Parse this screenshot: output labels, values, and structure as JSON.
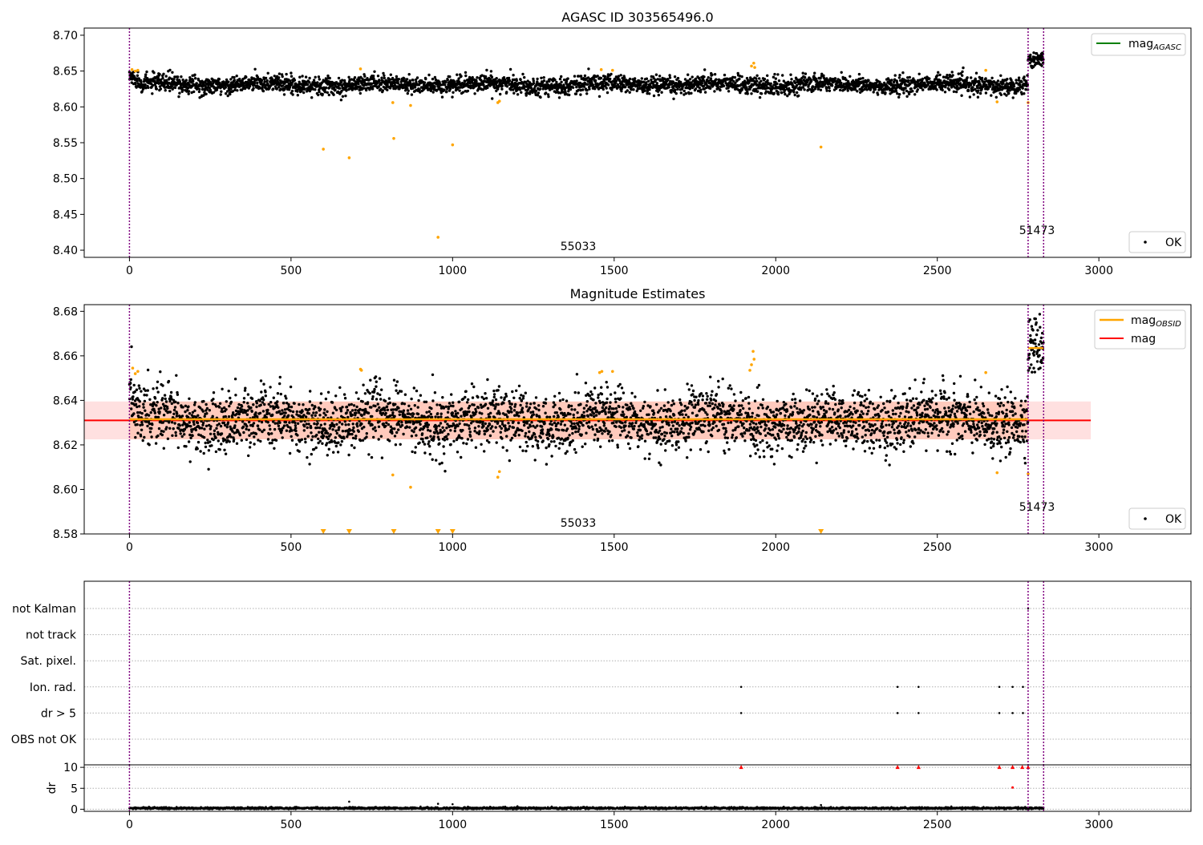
{
  "figure": {
    "xticks": [
      0,
      500,
      1000,
      1500,
      2000,
      2500,
      3000
    ],
    "vlines_x": [
      0,
      2781,
      2829
    ],
    "colors": {
      "ok": "#000000",
      "flagged": "#ffa500",
      "mean_line": "#ff0000",
      "obsid_line": "#ffa500",
      "agasc_line": "#008000",
      "vline": "#800080",
      "band_red": "#ffcccc",
      "band_orange": "#ffa07a",
      "warn_marker": "#ff0000"
    }
  },
  "chart_data": [
    {
      "type": "scatter",
      "id": "agasc",
      "title": "AGASC ID 303565496.0",
      "xlim": [
        -140,
        3285
      ],
      "ylim": [
        8.39,
        8.71
      ],
      "yticks": [
        8.4,
        8.45,
        8.5,
        8.55,
        8.6,
        8.65,
        8.7
      ],
      "ytick_labels": [
        "8.40",
        "8.45",
        "8.50",
        "8.55",
        "8.60",
        "8.65",
        "8.70"
      ],
      "legend_upper": {
        "line_label": "mag",
        "line_sub": "AGASC"
      },
      "legend_lower": {
        "label": "OK"
      },
      "obsid_labels": [
        {
          "text": "55033",
          "x": 1385,
          "y": 8.405
        },
        {
          "text": "51473",
          "x": 2805,
          "y": 8.427
        }
      ],
      "ok_series": {
        "segments": [
          {
            "x0": 0,
            "x1": 2781,
            "mean": 8.631,
            "spread": 0.006,
            "start_mean": 8.643
          },
          {
            "x0": 2781,
            "x1": 2829,
            "mean": 8.665,
            "spread": 0.006
          }
        ]
      },
      "flagged_points": [
        {
          "x": 8,
          "y": 8.652
        },
        {
          "x": 18,
          "y": 8.65
        },
        {
          "x": 26,
          "y": 8.651
        },
        {
          "x": 600,
          "y": 8.541
        },
        {
          "x": 680,
          "y": 8.529
        },
        {
          "x": 715,
          "y": 8.653
        },
        {
          "x": 815,
          "y": 8.606
        },
        {
          "x": 818,
          "y": 8.556
        },
        {
          "x": 870,
          "y": 8.602
        },
        {
          "x": 955,
          "y": 8.418
        },
        {
          "x": 1000,
          "y": 8.547
        },
        {
          "x": 1140,
          "y": 8.606
        },
        {
          "x": 1145,
          "y": 8.608
        },
        {
          "x": 1460,
          "y": 8.652
        },
        {
          "x": 1495,
          "y": 8.651
        },
        {
          "x": 1925,
          "y": 8.657
        },
        {
          "x": 1932,
          "y": 8.661
        },
        {
          "x": 1935,
          "y": 8.655
        },
        {
          "x": 2140,
          "y": 8.544
        },
        {
          "x": 2650,
          "y": 8.651
        },
        {
          "x": 2685,
          "y": 8.607
        },
        {
          "x": 2781,
          "y": 8.606
        }
      ]
    },
    {
      "type": "scatter",
      "id": "estimates",
      "title": "Magnitude Estimates",
      "xlim": [
        -140,
        3285
      ],
      "ylim": [
        8.58,
        8.683
      ],
      "yticks": [
        8.58,
        8.6,
        8.62,
        8.64,
        8.66,
        8.68
      ],
      "ytick_labels": [
        "8.58",
        "8.60",
        "8.62",
        "8.64",
        "8.66",
        "8.68"
      ],
      "mag_mean": 8.631,
      "mag_band": [
        8.6225,
        8.6395
      ],
      "band_x": [
        -140,
        2975
      ],
      "obsid_band_x": [
        0,
        2781
      ],
      "obsid_levels": [
        {
          "x0": 0,
          "x1": 2781,
          "y": 8.6315
        },
        {
          "x0": 2781,
          "x1": 2829,
          "y": 8.6635
        }
      ],
      "legend_upper": [
        {
          "line_label": "mag",
          "line_sub": "OBSID"
        },
        {
          "line_label": "mag"
        }
      ],
      "legend_lower": {
        "label": "OK"
      },
      "obsid_labels": [
        {
          "text": "55033",
          "x": 1385,
          "y": 8.5833
        },
        {
          "text": "51473",
          "x": 2805,
          "y": 8.5905
        }
      ],
      "ok_series": {
        "segments": [
          {
            "x0": 0,
            "x1": 2781,
            "mean": 8.631,
            "spread": 0.0065,
            "start_mean": 8.643
          },
          {
            "x0": 2781,
            "x1": 2829,
            "mean": 8.663,
            "spread": 0.0065
          }
        ]
      },
      "flagged_points": [
        {
          "x": 10,
          "y": 8.6545
        },
        {
          "x": 18,
          "y": 8.652
        },
        {
          "x": 26,
          "y": 8.653
        },
        {
          "x": 715,
          "y": 8.654
        },
        {
          "x": 718,
          "y": 8.6535
        },
        {
          "x": 815,
          "y": 8.6065
        },
        {
          "x": 870,
          "y": 8.601
        },
        {
          "x": 1140,
          "y": 8.6055
        },
        {
          "x": 1145,
          "y": 8.608
        },
        {
          "x": 1455,
          "y": 8.6525
        },
        {
          "x": 1462,
          "y": 8.653
        },
        {
          "x": 1495,
          "y": 8.653
        },
        {
          "x": 1920,
          "y": 8.6535
        },
        {
          "x": 1925,
          "y": 8.656
        },
        {
          "x": 1930,
          "y": 8.662
        },
        {
          "x": 1933,
          "y": 8.6585
        },
        {
          "x": 2650,
          "y": 8.6525
        },
        {
          "x": 2685,
          "y": 8.6075
        },
        {
          "x": 2781,
          "y": 8.607
        }
      ],
      "clipped_points_x": [
        600,
        680,
        818,
        955,
        1000,
        2140
      ]
    },
    {
      "type": "scatter",
      "id": "flags",
      "categories": [
        "not Kalman",
        "not track",
        "Sat. pixel.",
        "Ion. rad.",
        "dr > 5",
        "OBS not OK"
      ],
      "xlim": [
        -140,
        3285
      ],
      "points": [
        {
          "category": "Ion. rad.",
          "x": [
            1893,
            2377,
            2442,
            2692,
            2733,
            2765
          ]
        },
        {
          "category": "dr > 5",
          "x": [
            1893,
            2377,
            2442,
            2692,
            2733,
            2765
          ]
        },
        {
          "category": "not Kalman",
          "x": [
            2781
          ]
        }
      ]
    },
    {
      "type": "scatter",
      "id": "dr",
      "ylabel": "dr",
      "xlim": [
        -140,
        3285
      ],
      "ylim": [
        -0.5,
        10.6
      ],
      "yticks": [
        0,
        5,
        10
      ],
      "ytick_labels": [
        "0",
        "5",
        "10"
      ],
      "xticks": [
        0,
        500,
        1000,
        1500,
        2000,
        2500,
        3000
      ],
      "xtick_labels": [
        "0",
        "500",
        "1000",
        "1500",
        "2000",
        "2500",
        "3000"
      ],
      "baseline_mean": 0.25,
      "spikes": [
        {
          "x": 680,
          "y": 1.8
        },
        {
          "x": 955,
          "y": 1.3
        },
        {
          "x": 1000,
          "y": 1.2
        },
        {
          "x": 2140,
          "y": 1.0
        }
      ],
      "clipped_points": [
        {
          "x": 1893,
          "y": 10
        },
        {
          "x": 2377,
          "y": 10
        },
        {
          "x": 2442,
          "y": 10
        },
        {
          "x": 2692,
          "y": 10
        },
        {
          "x": 2733,
          "y": 10
        },
        {
          "x": 2763,
          "y": 10
        },
        {
          "x": 2781,
          "y": 10
        }
      ],
      "high_points": [
        {
          "x": 2733,
          "y": 5.2
        }
      ]
    }
  ]
}
